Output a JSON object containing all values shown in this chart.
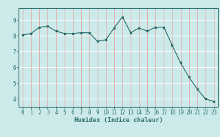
{
  "x": [
    0,
    1,
    2,
    3,
    4,
    5,
    6,
    7,
    8,
    9,
    10,
    11,
    12,
    13,
    14,
    15,
    16,
    17,
    18,
    19,
    20,
    21,
    22,
    23
  ],
  "y": [
    8.05,
    8.15,
    8.55,
    8.6,
    8.3,
    8.15,
    8.15,
    8.2,
    8.2,
    7.65,
    7.75,
    8.5,
    9.2,
    8.2,
    8.5,
    8.3,
    8.55,
    8.55,
    7.4,
    6.3,
    5.4,
    4.65,
    4.0,
    3.85
  ],
  "xlabel": "Humidex (Indice chaleur)",
  "xlim": [
    -0.5,
    23.5
  ],
  "ylim": [
    3.5,
    9.75
  ],
  "yticks": [
    4,
    5,
    6,
    7,
    8,
    9
  ],
  "xticks": [
    0,
    1,
    2,
    3,
    4,
    5,
    6,
    7,
    8,
    9,
    10,
    11,
    12,
    13,
    14,
    15,
    16,
    17,
    18,
    19,
    20,
    21,
    22,
    23
  ],
  "line_color": "#2e6e6e",
  "bg_color": "#cceaea",
  "grid_h_color": "#ffffff",
  "grid_v_color": "#e8a0a0",
  "label_fontsize": 6.5,
  "tick_fontsize": 5.5
}
